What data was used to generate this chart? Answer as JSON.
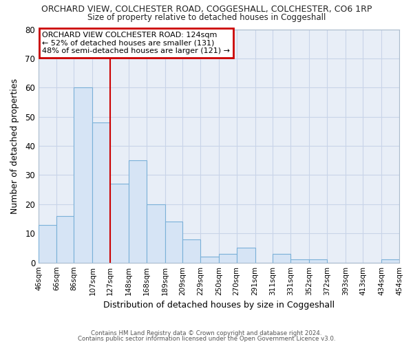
{
  "title": "ORCHARD VIEW, COLCHESTER ROAD, COGGESHALL, COLCHESTER, CO6 1RP",
  "subtitle": "Size of property relative to detached houses in Coggeshall",
  "xlabel": "Distribution of detached houses by size in Coggeshall",
  "ylabel": "Number of detached properties",
  "bar_edges": [
    46,
    66,
    86,
    107,
    127,
    148,
    168,
    189,
    209,
    229,
    250,
    270,
    291,
    311,
    331,
    352,
    372,
    393,
    413,
    434,
    454
  ],
  "bar_heights": [
    13,
    16,
    60,
    48,
    27,
    35,
    20,
    14,
    8,
    2,
    3,
    5,
    0,
    3,
    1,
    1,
    0,
    0,
    0,
    1
  ],
  "bar_color": "#d6e4f5",
  "bar_edge_color": "#7ab0d8",
  "reference_line_x": 127,
  "reference_line_color": "#cc0000",
  "ylim": [
    0,
    80
  ],
  "yticks": [
    0,
    10,
    20,
    30,
    40,
    50,
    60,
    70,
    80
  ],
  "tick_labels": [
    "46sqm",
    "66sqm",
    "86sqm",
    "107sqm",
    "127sqm",
    "148sqm",
    "168sqm",
    "189sqm",
    "209sqm",
    "229sqm",
    "250sqm",
    "270sqm",
    "291sqm",
    "311sqm",
    "331sqm",
    "352sqm",
    "372sqm",
    "393sqm",
    "413sqm",
    "434sqm",
    "454sqm"
  ],
  "annotation_title": "ORCHARD VIEW COLCHESTER ROAD: 124sqm",
  "annotation_line1": "← 52% of detached houses are smaller (131)",
  "annotation_line2": "48% of semi-detached houses are larger (121) →",
  "footer_line1": "Contains HM Land Registry data © Crown copyright and database right 2024.",
  "footer_line2": "Contains public sector information licensed under the Open Government Licence v3.0.",
  "background_color": "#ffffff",
  "plot_bg_color": "#e8eef7",
  "grid_color": "#c8d4e8"
}
